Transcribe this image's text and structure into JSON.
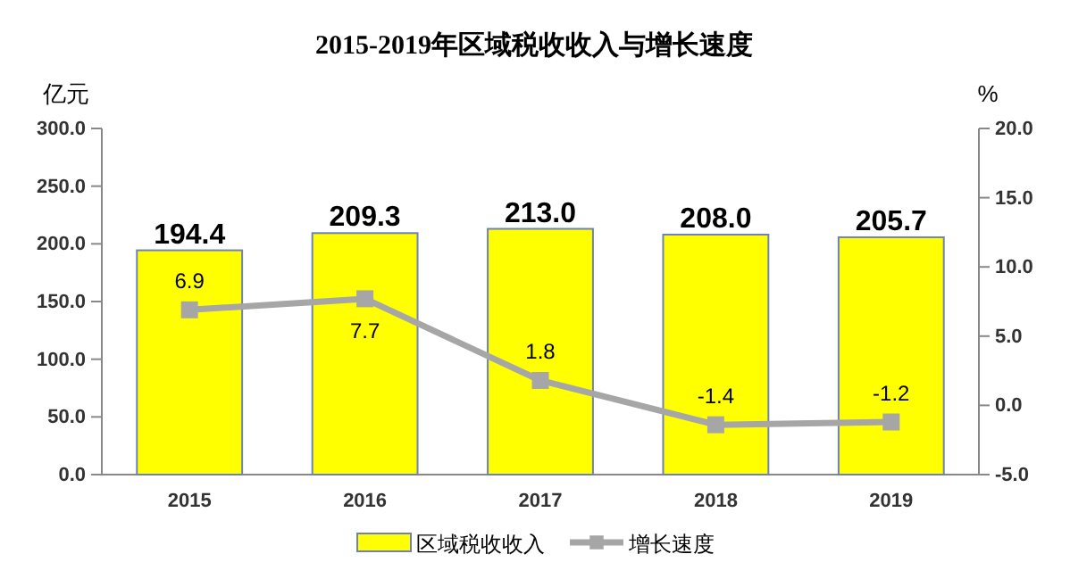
{
  "chart_data": {
    "type": "bar",
    "title": "2015-2019年区域税收收入与增长速度",
    "ylabel": "亿元",
    "y2label": "%",
    "categories": [
      "2015",
      "2016",
      "2017",
      "2018",
      "2019"
    ],
    "series": [
      {
        "name": "区域税收收入",
        "color": "#ffff00",
        "values": [
          194.4,
          209.3,
          213.0,
          208.0,
          205.7
        ],
        "value_labels": [
          "194.4",
          "209.3",
          "213.0",
          "208.0",
          "205.7"
        ]
      },
      {
        "name": "增长速度",
        "type": "line",
        "axis": "y2",
        "color": "#a6a6a6",
        "values": [
          6.9,
          7.7,
          1.8,
          -1.4,
          -1.2
        ],
        "value_labels": [
          "6.9",
          "7.7",
          "1.8",
          "-1.4",
          "-1.2"
        ]
      }
    ],
    "ylim": [
      0,
      300
    ],
    "yticks": [
      {
        "value": 0,
        "label": "0.0"
      },
      {
        "value": 50,
        "label": "50.0"
      },
      {
        "value": 100,
        "label": "100.0"
      },
      {
        "value": 150,
        "label": "150.0"
      },
      {
        "value": 200,
        "label": "200.0"
      },
      {
        "value": 250,
        "label": "250.0"
      },
      {
        "value": 300,
        "label": "300.0"
      }
    ],
    "y2lim": [
      -5,
      20
    ],
    "y2ticks": [
      {
        "value": -5,
        "label": "-5.0"
      },
      {
        "value": 0,
        "label": "0.0"
      },
      {
        "value": 5,
        "label": "5.0"
      },
      {
        "value": 10,
        "label": "10.0"
      },
      {
        "value": 15,
        "label": "15.0"
      },
      {
        "value": 20,
        "label": "20.0"
      }
    ],
    "grid": false,
    "legend": "bottom",
    "marker": "square",
    "line_style": "solid"
  }
}
